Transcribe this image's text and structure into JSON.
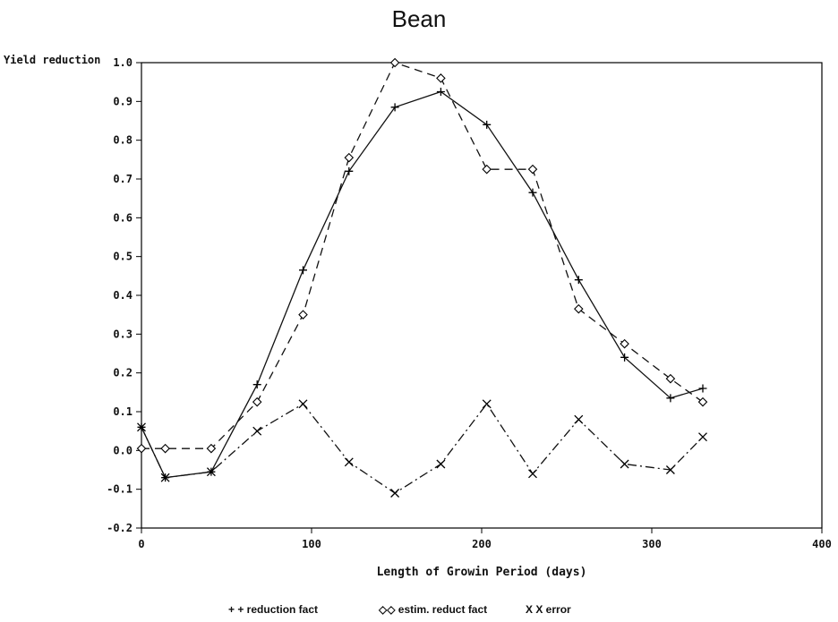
{
  "chart_data": {
    "type": "line",
    "title": "Bean",
    "ylabel": "Yield reduction",
    "xlabel": "Length of Growin Period (days)",
    "xlim": [
      0,
      400
    ],
    "ylim": [
      -0.2,
      1.0
    ],
    "x_ticks": [
      "0",
      "100",
      "200",
      "300",
      "400"
    ],
    "y_ticks": [
      "-0.2",
      "-0.1",
      "0.0",
      "0.1",
      "0.2",
      "0.3",
      "0.4",
      "0.5",
      "0.6",
      "0.7",
      "0.8",
      "0.9",
      "1.0"
    ],
    "grid": false,
    "legend_position": "bottom",
    "series": [
      {
        "name": "reduction fact",
        "legend_label": "+ + reduction fact",
        "marker": "+",
        "line_style": "solid",
        "x": [
          0,
          14,
          41,
          68,
          95,
          122,
          149,
          176,
          203,
          230,
          257,
          284,
          311,
          330
        ],
        "y": [
          0.06,
          -0.07,
          -0.055,
          0.17,
          0.465,
          0.72,
          0.885,
          0.925,
          0.84,
          0.665,
          0.44,
          0.24,
          0.135,
          0.16
        ]
      },
      {
        "name": "estim. reduct fact",
        "legend_label": "◇◇ estim. reduct fact",
        "marker": "diamond",
        "line_style": "dashed",
        "x": [
          0,
          14,
          41,
          68,
          95,
          122,
          149,
          176,
          203,
          230,
          257,
          284,
          311,
          330
        ],
        "y": [
          0.005,
          0.005,
          0.005,
          0.125,
          0.35,
          0.755,
          1.0,
          0.96,
          0.725,
          0.725,
          0.365,
          0.275,
          0.185,
          0.125
        ]
      },
      {
        "name": "error",
        "legend_label": "X X error",
        "marker": "x",
        "line_style": "dashdot",
        "x": [
          0,
          14,
          41,
          68,
          95,
          122,
          149,
          176,
          203,
          230,
          257,
          284,
          311,
          330
        ],
        "y": [
          0.06,
          -0.07,
          -0.055,
          0.05,
          0.12,
          -0.03,
          -0.11,
          -0.035,
          0.12,
          -0.06,
          0.08,
          -0.035,
          -0.05,
          0.035
        ]
      }
    ]
  }
}
